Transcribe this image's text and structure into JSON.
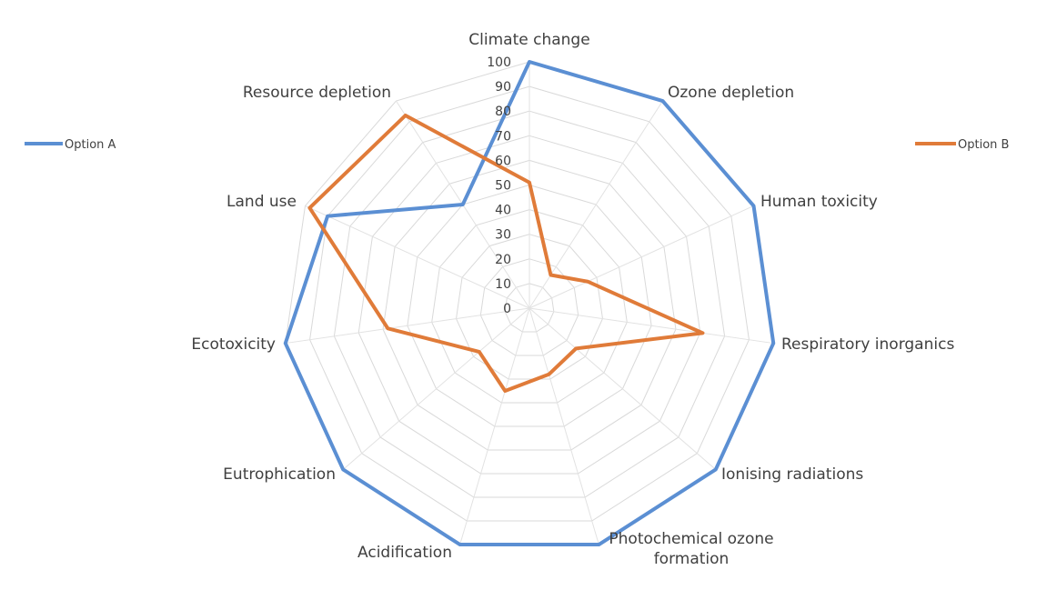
{
  "chart_data": {
    "type": "radar",
    "categories": [
      "Climate change",
      "Ozone depletion",
      "Human toxicity",
      "Respiratory inorganics",
      "Ionising radiations",
      "Photochemical ozone formation",
      "Acidification",
      "Eutrophication",
      "Ecotoxicity",
      "Land use",
      "Resource depletion"
    ],
    "category_label_lines": [
      [
        "Climate change"
      ],
      [
        "Ozone depletion"
      ],
      [
        "Human toxicity"
      ],
      [
        "Respiratory inorganics"
      ],
      [
        "Ionising radiations"
      ],
      [
        "Photochemical ozone",
        "formation"
      ],
      [
        "Acidification"
      ],
      [
        "Eutrophication"
      ],
      [
        "Ecotoxicity"
      ],
      [
        "Land use"
      ],
      [
        "Resource depletion"
      ]
    ],
    "axis": {
      "min": 0,
      "max": 100,
      "step": 10
    },
    "tick_labels": [
      "0",
      "10",
      "20",
      "30",
      "40",
      "50",
      "60",
      "70",
      "80",
      "90",
      "100"
    ],
    "series": [
      {
        "name": "Option A",
        "color": "#5b8fd3",
        "values": [
          100,
          100,
          100,
          100,
          100,
          100,
          100,
          100,
          100,
          90,
          50
        ]
      },
      {
        "name": "Option B",
        "color": "#e07b39",
        "values": [
          51,
          16,
          26,
          71,
          25,
          28,
          35,
          27,
          58,
          98,
          93
        ]
      }
    ],
    "legend": {
      "placement": "left-and-right"
    },
    "grid": true
  }
}
